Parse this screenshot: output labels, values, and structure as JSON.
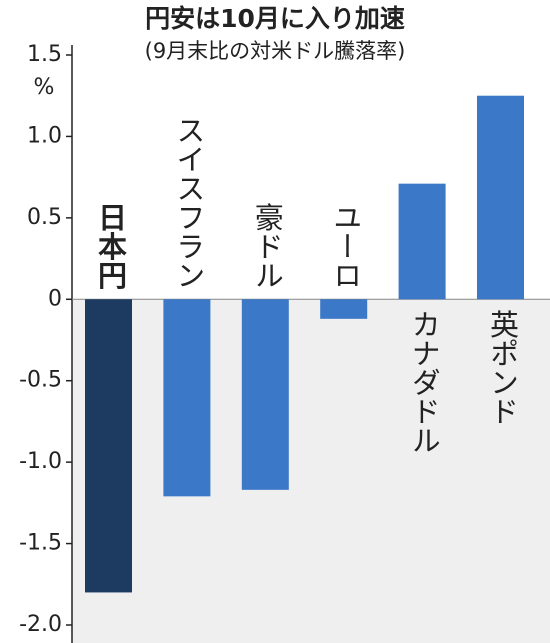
{
  "chart_data": {
    "type": "bar",
    "title": "円安は10月に入り加速",
    "subtitle": "(9月末比の対米ドル騰落率)",
    "y_unit": "%",
    "categories": [
      "日本円",
      "スイスフラン",
      "豪ドル",
      "ユーロ",
      "カナダドル",
      "英ポンド"
    ],
    "values": [
      -1.8,
      -1.21,
      -1.17,
      -0.12,
      0.71,
      1.25
    ],
    "colors": [
      "#1d3a60",
      "#3b78c8",
      "#3b78c8",
      "#3b78c8",
      "#3b78c8",
      "#3b78c8"
    ],
    "ylim": [
      -2.0,
      1.5
    ],
    "yticks": [
      1.5,
      {
        "value": 1.0,
        "label": "1.0"
      },
      0.5,
      0,
      -0.5,
      {
        "value": -1.0,
        "label": "-1.0"
      },
      -1.5,
      {
        "value": -2.0,
        "label": "-2.0"
      }
    ]
  }
}
